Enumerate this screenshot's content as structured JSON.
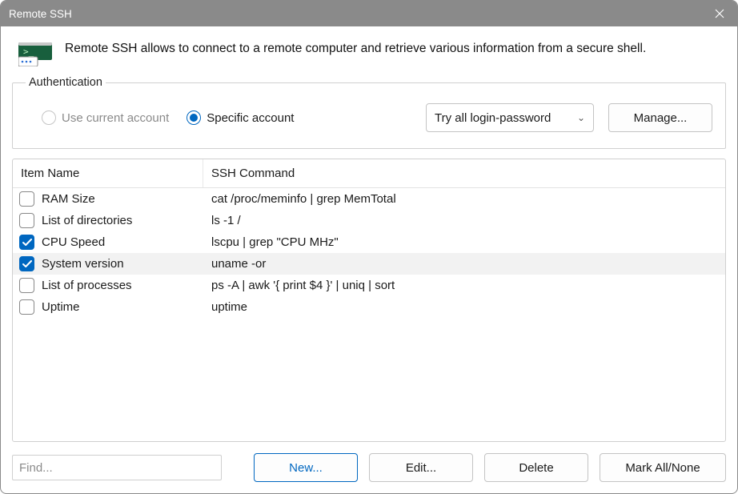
{
  "window": {
    "title": "Remote SSH"
  },
  "info": {
    "text": "Remote SSH allows to connect to a remote computer and retrieve various information from a secure shell."
  },
  "auth": {
    "legend": "Authentication",
    "use_current_label": "Use current account",
    "specific_label": "Specific account",
    "dropdown_value": "Try all login-password",
    "manage_label": "Manage..."
  },
  "table": {
    "headers": {
      "col1": "Item Name",
      "col2": "SSH Command"
    },
    "rows": [
      {
        "checked": false,
        "selected": false,
        "name": "RAM Size",
        "cmd": "cat /proc/meminfo | grep MemTotal"
      },
      {
        "checked": false,
        "selected": false,
        "name": "List of directories",
        "cmd": "ls -1 /"
      },
      {
        "checked": true,
        "selected": false,
        "name": "CPU Speed",
        "cmd": "lscpu | grep \"CPU MHz\""
      },
      {
        "checked": true,
        "selected": true,
        "name": "System version",
        "cmd": "uname -or"
      },
      {
        "checked": false,
        "selected": false,
        "name": "List of processes",
        "cmd": "ps -A | awk '{ print $4 }' | uniq | sort"
      },
      {
        "checked": false,
        "selected": false,
        "name": "Uptime",
        "cmd": "uptime"
      }
    ]
  },
  "footer": {
    "find_placeholder": "Find...",
    "new_label": "New...",
    "edit_label": "Edit...",
    "delete_label": "Delete",
    "markall_label": "Mark All/None"
  },
  "colors": {
    "accent": "#0067c0",
    "titlebar": "#8a8a8a",
    "border": "#cfcfcf"
  }
}
